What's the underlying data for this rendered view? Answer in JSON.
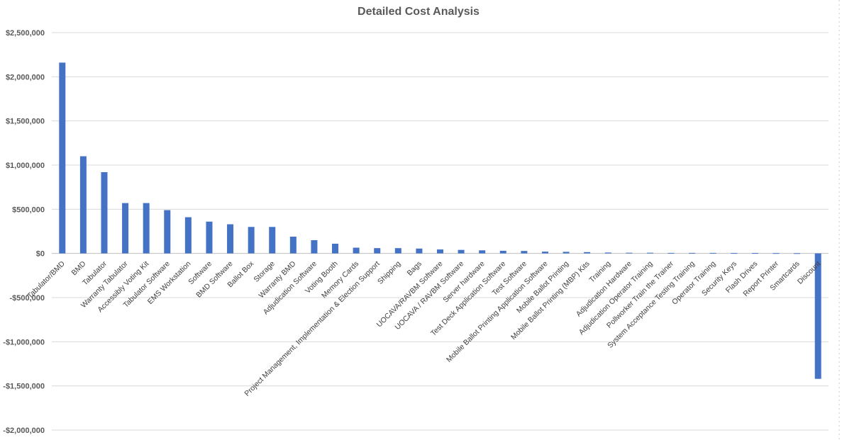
{
  "chart_data": {
    "type": "bar",
    "title": "Detailed Cost Analysis",
    "xlabel": "",
    "ylabel": "",
    "ylim": [
      -2000000,
      2500000
    ],
    "yticks": [
      2500000,
      2000000,
      1500000,
      1000000,
      500000,
      0,
      -500000,
      -1000000,
      -1500000,
      -2000000
    ],
    "ytick_labels": [
      "$2,500,000",
      "$2,000,000",
      "$1,500,000",
      "$1,000,000",
      "$500,000",
      "$0",
      "-$500,000",
      "-$1,000,000",
      "-$1,500,000",
      "-$2,000,000"
    ],
    "grid": true,
    "legend": "none",
    "bar_color": "#4472c4",
    "categories": [
      "Tabulator/BMD",
      "BMD",
      "Tabulator",
      "Warranty Tabulator",
      "Accessibly Voting Kit",
      "Tabulator Software",
      "EMS Workstation",
      "Software",
      "BMD Software",
      "Ballot Box",
      "Storage",
      "Warranty BMD",
      "Adjudication Software",
      "Voting Booth",
      "Memory Cards",
      "Project Management, Implementation & Election Support",
      "Shipping",
      "Bags",
      "UOCAVA/RAVBM Software",
      "UOCAVA / RAVBM Software",
      "Server hardware",
      "Test Deck Application Software",
      "Test Software",
      "Mobile Ballot Printing Application Software",
      "Mobile Ballot Printing",
      "Mobile Ballot Printing (MBP) Kits",
      "Training",
      "Adjudication Hardware",
      "Adjudication Operator Training",
      "Pollworker Train the Trainer",
      "System Acceptance Testing Training",
      "Operator Training",
      "Security Keys",
      "Flash Drives",
      "Report Printer",
      "Smartcards",
      "Discount"
    ],
    "values": [
      2160000,
      1100000,
      920000,
      570000,
      570000,
      490000,
      410000,
      360000,
      330000,
      300000,
      300000,
      190000,
      150000,
      110000,
      65000,
      60000,
      60000,
      55000,
      45000,
      40000,
      35000,
      30000,
      28000,
      20000,
      18000,
      15000,
      10000,
      8000,
      8000,
      6000,
      6000,
      6000,
      5000,
      5000,
      4000,
      3000,
      -1420000
    ]
  }
}
